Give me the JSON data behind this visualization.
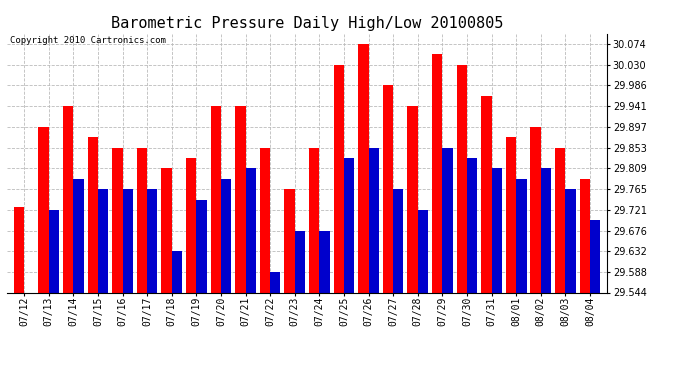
{
  "title": "Barometric Pressure Daily High/Low 20100805",
  "copyright": "Copyright 2010 Cartronics.com",
  "dates": [
    "07/12",
    "07/13",
    "07/14",
    "07/15",
    "07/16",
    "07/17",
    "07/18",
    "07/19",
    "07/20",
    "07/21",
    "07/22",
    "07/23",
    "07/24",
    "07/25",
    "07/26",
    "07/27",
    "07/28",
    "07/29",
    "07/30",
    "07/31",
    "08/01",
    "08/02",
    "08/03",
    "08/04"
  ],
  "highs": [
    29.726,
    29.897,
    29.941,
    29.875,
    29.853,
    29.853,
    29.809,
    29.831,
    29.941,
    29.941,
    29.853,
    29.765,
    29.853,
    30.03,
    30.074,
    29.986,
    29.941,
    30.052,
    30.03,
    29.964,
    29.875,
    29.897,
    29.853,
    29.786
  ],
  "lows": [
    29.544,
    29.72,
    29.786,
    29.764,
    29.764,
    29.764,
    29.632,
    29.742,
    29.786,
    29.809,
    29.588,
    29.676,
    29.676,
    29.83,
    29.853,
    29.764,
    29.72,
    29.853,
    29.831,
    29.809,
    29.786,
    29.809,
    29.764,
    29.698
  ],
  "high_color": "#ff0000",
  "low_color": "#0000cc",
  "ylim_min": 29.544,
  "ylim_max": 30.096,
  "yticks": [
    30.074,
    30.03,
    29.986,
    29.941,
    29.897,
    29.853,
    29.809,
    29.765,
    29.721,
    29.676,
    29.632,
    29.588,
    29.544
  ],
  "background_color": "#ffffff",
  "grid_color": "#bbbbbb",
  "title_fontsize": 11,
  "tick_fontsize": 7,
  "bar_width": 0.42
}
